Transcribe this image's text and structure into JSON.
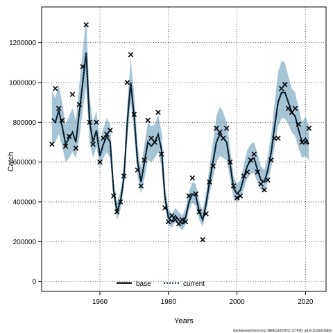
{
  "chart_data": {
    "type": "line",
    "xlabel": "Years",
    "ylabel": "Catch",
    "xlim": [
      1943,
      2026
    ],
    "ylim": [
      -50000,
      1380000
    ],
    "x_ticks": [
      1960,
      1980,
      2000,
      2020
    ],
    "y_ticks": [
      0,
      200000,
      400000,
      600000,
      800000,
      1000000,
      1200000
    ],
    "x_tick_labels": [
      "1960",
      "1980",
      "2000",
      "2020"
    ],
    "y_tick_labels": [
      "0",
      "200000",
      "400000",
      "600000",
      "800000",
      "1000000",
      "1200000"
    ],
    "grid": true,
    "legend_position": "bottom-left",
    "footer": "stockassessment.org, NEACod-2023, r17430, git:ec2c2a0c6dde",
    "colors": {
      "band": "#5b93b5",
      "base": "#000000",
      "current": "#0d3d5a",
      "observed": "#000000"
    },
    "series": [
      {
        "name": "base",
        "style": "solid",
        "x": [
          1946,
          1947,
          1948,
          1949,
          1950,
          1951,
          1952,
          1953,
          1954,
          1955,
          1956,
          1957,
          1958,
          1959,
          1960,
          1961,
          1962,
          1963,
          1964,
          1965,
          1966,
          1967,
          1968,
          1969,
          1970,
          1971,
          1972,
          1973,
          1974,
          1975,
          1976,
          1977,
          1978,
          1979,
          1980,
          1981,
          1982,
          1983,
          1984,
          1985,
          1986,
          1987,
          1988,
          1989,
          1990,
          1991,
          1992,
          1993,
          1994,
          1995,
          1996,
          1997,
          1998,
          1999,
          2000,
          2001,
          2002,
          2003,
          2004,
          2005,
          2006,
          2007,
          2008,
          2009,
          2010,
          2011,
          2012,
          2013,
          2014,
          2015,
          2016,
          2017,
          2018,
          2019,
          2020,
          2021
        ],
        "values": [
          820000,
          800000,
          860000,
          780000,
          690000,
          720000,
          750000,
          700000,
          850000,
          1000000,
          1150000,
          800000,
          700000,
          760000,
          630000,
          690000,
          730000,
          700000,
          460000,
          350000,
          400000,
          520000,
          800000,
          1000000,
          830000,
          600000,
          500000,
          600000,
          700000,
          680000,
          700000,
          740000,
          660000,
          420000,
          320000,
          300000,
          330000,
          310000,
          290000,
          320000,
          400000,
          440000,
          430000,
          350000,
          310000,
          390000,
          500000,
          600000,
          700000,
          740000,
          720000,
          700000,
          590000,
          470000,
          440000,
          460000,
          520000,
          580000,
          610000,
          620000,
          560000,
          510000,
          500000,
          560000,
          650000,
          780000,
          900000,
          950000,
          950000,
          900000,
          850000,
          830000,
          760000,
          700000,
          720000,
          690000
        ]
      },
      {
        "name": "current",
        "style": "dotted",
        "x": [
          1946,
          1947,
          1948,
          1949,
          1950,
          1951,
          1952,
          1953,
          1954,
          1955,
          1956,
          1957,
          1958,
          1959,
          1960,
          1961,
          1962,
          1963,
          1964,
          1965,
          1966,
          1967,
          1968,
          1969,
          1970,
          1971,
          1972,
          1973,
          1974,
          1975,
          1976,
          1977,
          1978,
          1979,
          1980,
          1981,
          1982,
          1983,
          1984,
          1985,
          1986,
          1987,
          1988,
          1989,
          1990,
          1991,
          1992,
          1993,
          1994,
          1995,
          1996,
          1997,
          1998,
          1999,
          2000,
          2001,
          2002,
          2003,
          2004,
          2005,
          2006,
          2007,
          2008,
          2009,
          2010,
          2011,
          2012,
          2013,
          2014,
          2015,
          2016,
          2017,
          2018,
          2019,
          2020,
          2021
        ],
        "values": [
          820000,
          800000,
          860000,
          780000,
          690000,
          720000,
          750000,
          700000,
          850000,
          1000000,
          1150000,
          800000,
          700000,
          760000,
          630000,
          690000,
          730000,
          700000,
          460000,
          350000,
          400000,
          520000,
          800000,
          1000000,
          830000,
          600000,
          500000,
          600000,
          700000,
          680000,
          700000,
          740000,
          660000,
          420000,
          320000,
          300000,
          330000,
          310000,
          290000,
          320000,
          400000,
          440000,
          430000,
          350000,
          310000,
          390000,
          500000,
          600000,
          700000,
          740000,
          720000,
          700000,
          590000,
          470000,
          440000,
          460000,
          520000,
          580000,
          610000,
          620000,
          560000,
          510000,
          500000,
          560000,
          650000,
          780000,
          900000,
          950000,
          950000,
          900000,
          850000,
          830000,
          760000,
          700000,
          720000,
          690000
        ]
      }
    ],
    "confidence_band": {
      "x": [
        1946,
        1947,
        1948,
        1949,
        1950,
        1951,
        1952,
        1953,
        1954,
        1955,
        1956,
        1957,
        1958,
        1959,
        1960,
        1961,
        1962,
        1963,
        1964,
        1965,
        1966,
        1967,
        1968,
        1969,
        1970,
        1971,
        1972,
        1973,
        1974,
        1975,
        1976,
        1977,
        1978,
        1979,
        1980,
        1981,
        1982,
        1983,
        1984,
        1985,
        1986,
        1987,
        1988,
        1989,
        1990,
        1991,
        1992,
        1993,
        1994,
        1995,
        1996,
        1997,
        1998,
        1999,
        2000,
        2001,
        2002,
        2003,
        2004,
        2005,
        2006,
        2007,
        2008,
        2009,
        2010,
        2011,
        2012,
        2013,
        2014,
        2015,
        2016,
        2017,
        2018,
        2019,
        2020,
        2021
      ],
      "lower": [
        690000,
        700000,
        740000,
        680000,
        600000,
        620000,
        650000,
        620000,
        720000,
        860000,
        980000,
        700000,
        620000,
        680000,
        570000,
        620000,
        650000,
        620000,
        420000,
        310000,
        360000,
        470000,
        720000,
        900000,
        740000,
        530000,
        440000,
        520000,
        610000,
        600000,
        620000,
        650000,
        580000,
        370000,
        285000,
        270000,
        300000,
        275000,
        255000,
        285000,
        360000,
        395000,
        380000,
        310000,
        275000,
        345000,
        440000,
        520000,
        600000,
        630000,
        620000,
        610000,
        520000,
        420000,
        400000,
        420000,
        465000,
        515000,
        540000,
        545000,
        495000,
        460000,
        450000,
        500000,
        570000,
        680000,
        780000,
        820000,
        820000,
        790000,
        750000,
        730000,
        670000,
        620000,
        630000,
        610000
      ],
      "upper": [
        960000,
        920000,
        990000,
        900000,
        790000,
        830000,
        870000,
        810000,
        990000,
        1160000,
        1320000,
        920000,
        800000,
        860000,
        700000,
        770000,
        820000,
        790000,
        510000,
        390000,
        450000,
        580000,
        890000,
        1120000,
        940000,
        680000,
        570000,
        690000,
        800000,
        780000,
        790000,
        840000,
        750000,
        480000,
        365000,
        340000,
        370000,
        350000,
        330000,
        365000,
        450000,
        500000,
        490000,
        400000,
        355000,
        450000,
        580000,
        700000,
        830000,
        880000,
        850000,
        800000,
        670000,
        530000,
        490000,
        510000,
        585000,
        660000,
        690000,
        700000,
        640000,
        580000,
        560000,
        630000,
        740000,
        900000,
        1050000,
        1110000,
        1100000,
        1030000,
        970000,
        950000,
        870000,
        800000,
        830000,
        780000
      ]
    },
    "observed": {
      "x": [
        1946,
        1947,
        1948,
        1949,
        1950,
        1951,
        1952,
        1953,
        1954,
        1955,
        1956,
        1957,
        1958,
        1959,
        1960,
        1961,
        1962,
        1963,
        1964,
        1965,
        1966,
        1967,
        1968,
        1969,
        1970,
        1971,
        1972,
        1973,
        1974,
        1975,
        1976,
        1977,
        1978,
        1979,
        1980,
        1981,
        1982,
        1983,
        1984,
        1985,
        1986,
        1987,
        1988,
        1989,
        1990,
        1991,
        1992,
        1993,
        1994,
        1995,
        1996,
        1997,
        1998,
        1999,
        2000,
        2001,
        2002,
        2003,
        2004,
        2005,
        2006,
        2007,
        2008,
        2009,
        2010,
        2011,
        2012,
        2013,
        2014,
        2015,
        2016,
        2017,
        2018,
        2019,
        2020,
        2021
      ],
      "values": [
        690000,
        970000,
        870000,
        810000,
        680000,
        730000,
        940000,
        670000,
        890000,
        1080000,
        1290000,
        800000,
        690000,
        800000,
        600000,
        720000,
        740000,
        760000,
        430000,
        350000,
        400000,
        530000,
        1000000,
        1140000,
        840000,
        560000,
        480000,
        610000,
        810000,
        720000,
        700000,
        850000,
        640000,
        370000,
        300000,
        330000,
        310000,
        290000,
        310000,
        300000,
        430000,
        520000,
        440000,
        350000,
        210000,
        340000,
        500000,
        580000,
        770000,
        750000,
        720000,
        770000,
        600000,
        480000,
        420000,
        430000,
        530000,
        550000,
        610000,
        640000,
        550000,
        490000,
        460000,
        510000,
        610000,
        720000,
        720000,
        970000,
        990000,
        870000,
        850000,
        870000,
        790000,
        700000,
        700000,
        770000
      ]
    }
  }
}
